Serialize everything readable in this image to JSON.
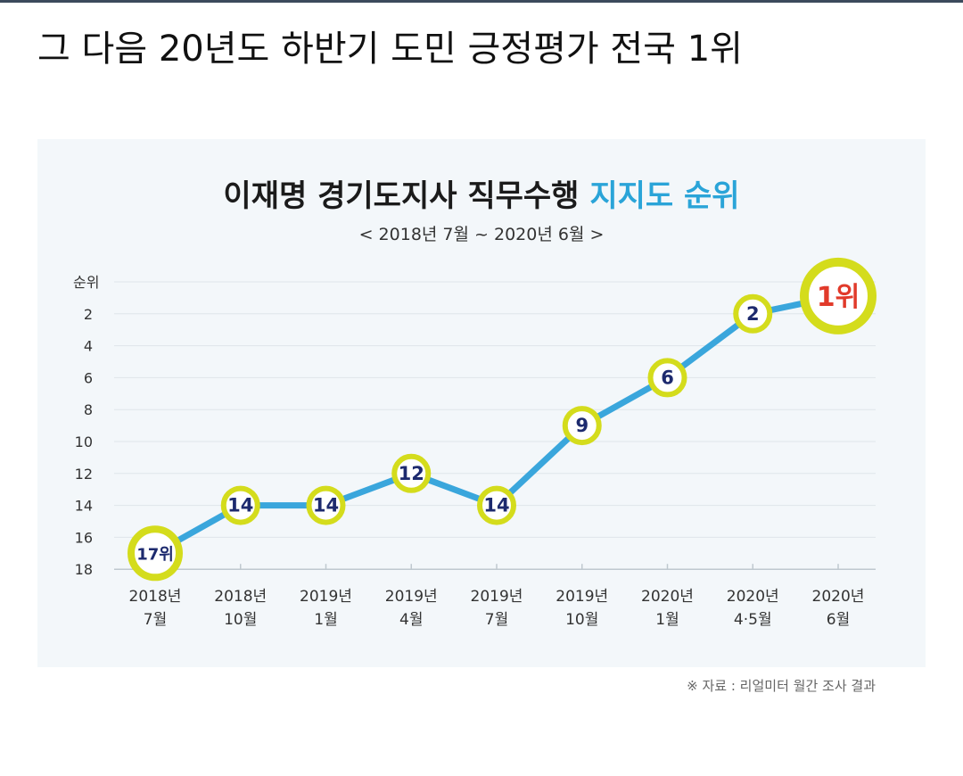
{
  "post": {
    "heading": "그 다음 20년도 하반기 도민 긍정평가 전국 1위"
  },
  "chart_data": {
    "type": "line",
    "title_main": "이재명 경기도지사 직무수행",
    "title_accent": "지지도 순위",
    "subtitle": "< 2018년 7월  ~  2020년 6월 >",
    "ylabel": "순위",
    "yticks": [
      2,
      4,
      6,
      8,
      10,
      12,
      14,
      16,
      18
    ],
    "ylim": [
      18,
      0
    ],
    "y_inverted": true,
    "categories": [
      [
        "2018년",
        "7월"
      ],
      [
        "2018년",
        "10월"
      ],
      [
        "2019년",
        "1월"
      ],
      [
        "2019년",
        "4월"
      ],
      [
        "2019년",
        "7월"
      ],
      [
        "2019년",
        "10월"
      ],
      [
        "2020년",
        "1월"
      ],
      [
        "2020년",
        "4·5월"
      ],
      [
        "2020년",
        "6월"
      ]
    ],
    "values": [
      17,
      14,
      14,
      12,
      14,
      9,
      6,
      2,
      1
    ],
    "point_labels": [
      "17위",
      "14",
      "14",
      "12",
      "14",
      "9",
      "6",
      "2",
      "1위"
    ],
    "line_color": "#3aa6dc",
    "marker_color": "#d4dc1c",
    "label_color": "#1d2a6e",
    "highlight_label_color": "#e13a2a",
    "grid": true,
    "source": "※ 자료 : 리얼미터 월간 조사 결과"
  }
}
